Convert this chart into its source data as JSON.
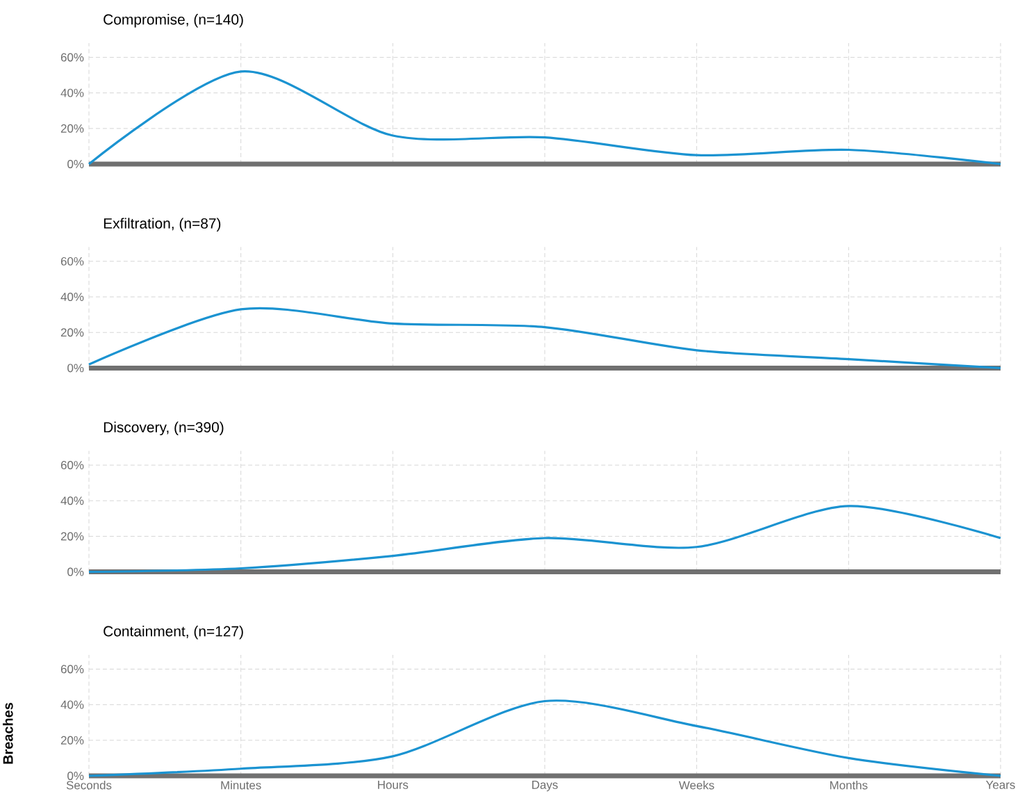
{
  "chart_data": [
    {
      "type": "line",
      "title": "Compromise, (n=140)",
      "categories": [
        null,
        null,
        null,
        null,
        null,
        null,
        null
      ],
      "ylim": [
        0,
        68
      ],
      "yticks": [
        {
          "value": 0,
          "label": "0%"
        },
        {
          "value": 20,
          "label": "20%"
        },
        {
          "value": 40,
          "label": "40%"
        },
        {
          "value": 60,
          "label": "60%"
        }
      ],
      "grid": true,
      "series": [
        {
          "color": "#1b93d1",
          "values": [
            0,
            52,
            16,
            15,
            5,
            8,
            0
          ]
        }
      ]
    },
    {
      "type": "line",
      "title": "Exfiltration, (n=87)",
      "categories": [
        null,
        null,
        null,
        null,
        null,
        null,
        null
      ],
      "ylim": [
        0,
        68
      ],
      "yticks": [
        {
          "value": 0,
          "label": "0%"
        },
        {
          "value": 20,
          "label": "20%"
        },
        {
          "value": 40,
          "label": "40%"
        },
        {
          "value": 60,
          "label": "60%"
        }
      ],
      "grid": true,
      "series": [
        {
          "color": "#1b93d1",
          "values": [
            2,
            33,
            25,
            23,
            10,
            5,
            0
          ]
        }
      ]
    },
    {
      "type": "line",
      "title": "Discovery, (n=390)",
      "categories": [
        null,
        null,
        null,
        null,
        null,
        null,
        null
      ],
      "ylim": [
        0,
        68
      ],
      "yticks": [
        {
          "value": 0,
          "label": "0%"
        },
        {
          "value": 20,
          "label": "20%"
        },
        {
          "value": 40,
          "label": "40%"
        },
        {
          "value": 60,
          "label": "60%"
        }
      ],
      "grid": true,
      "series": [
        {
          "color": "#1b93d1",
          "values": [
            0,
            2,
            9,
            19,
            14,
            37,
            19
          ]
        }
      ]
    },
    {
      "type": "line",
      "title": "Containment, (n=127)",
      "ylabel": "Breaches",
      "categories": [
        "Seconds",
        "Minutes",
        "Hours",
        "Days",
        "Weeks",
        "Months",
        "Years"
      ],
      "ylim": [
        0,
        68
      ],
      "yticks": [
        {
          "value": 0,
          "label": "0%"
        },
        {
          "value": 20,
          "label": "20%"
        },
        {
          "value": 40,
          "label": "40%"
        },
        {
          "value": 60,
          "label": "60%"
        }
      ],
      "grid": true,
      "series": [
        {
          "color": "#1b93d1",
          "values": [
            0,
            4,
            11,
            42,
            28,
            10,
            0
          ]
        }
      ]
    }
  ]
}
